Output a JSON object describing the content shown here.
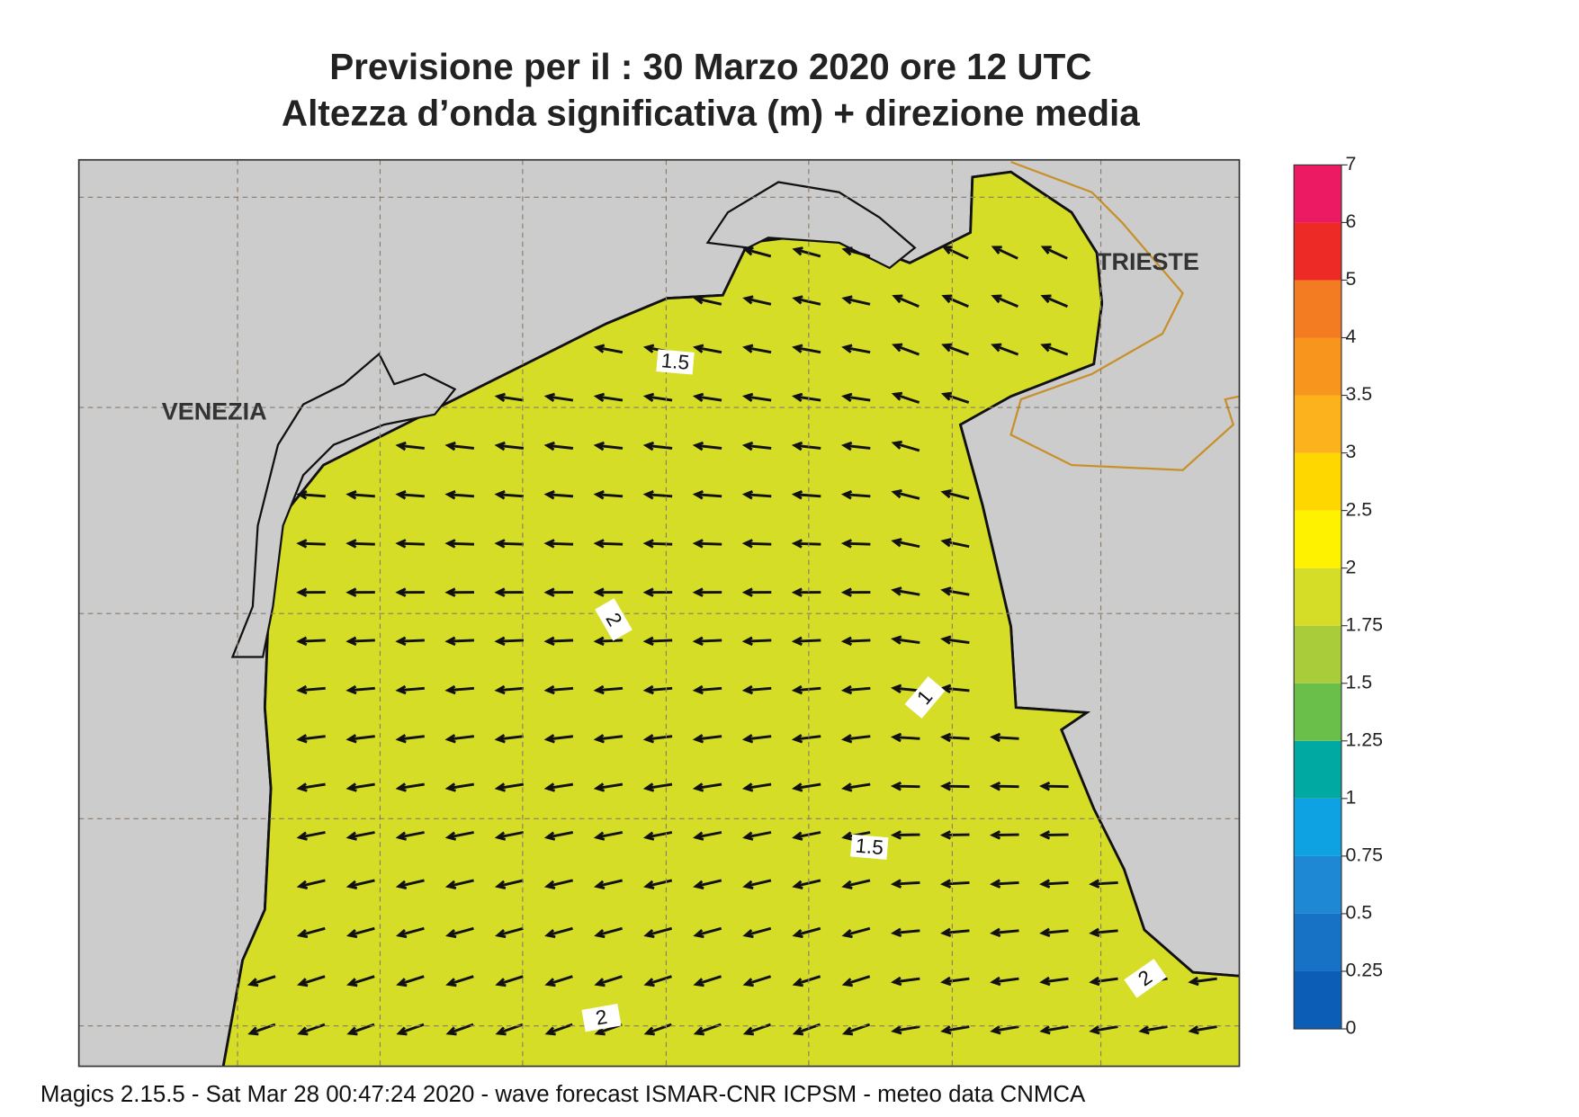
{
  "title": {
    "line1": "Previsione per il  :  30   Marzo   2020   ore 12 UTC",
    "line2": "Altezza d’onda significativa (m) + direzione media"
  },
  "places": {
    "venezia": "VENEZIA",
    "trieste": "TRIESTE"
  },
  "contour_labels": [
    "1.5",
    "2",
    "1",
    "1.5",
    "2",
    "2"
  ],
  "colorbar": {
    "labels": [
      "0",
      "0.25",
      "0.5",
      "0.75",
      "1",
      "1.25",
      "1.5",
      "1.75",
      "2",
      "2.5",
      "3",
      "3.5",
      "4",
      "5",
      "6",
      "7"
    ],
    "colors": [
      "#0b5db6",
      "#1772c6",
      "#1e88d5",
      "#0ea2e2",
      "#00aaa2",
      "#6abf4b",
      "#a8cc3a",
      "#d5dd26",
      "#fff200",
      "#ffd700",
      "#fbb21d",
      "#f7951d",
      "#f37b21",
      "#ed2a25",
      "#ec1a62"
    ]
  },
  "footer": "Magics 2.15.5 - Sat Mar 28 00:47:24 2020 - wave forecast  ISMAR-CNR  ICPSM - meteo data   CNMCA"
}
